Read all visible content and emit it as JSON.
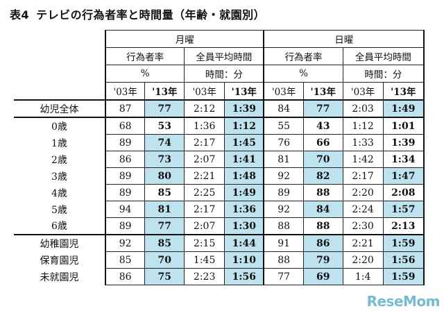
{
  "title": {
    "num": "表4",
    "text": "テレビの行為者率と時間量（年齢・就園別）"
  },
  "headers": {
    "monday": "月曜",
    "sunday": "日曜",
    "rate": "行為者率",
    "avg": "全員平均時間",
    "pct": "%",
    "time": "時間：分",
    "y03": "'03年",
    "y13": "'13年"
  },
  "rows": [
    {
      "label": "幼児全体",
      "v": [
        "87",
        "77",
        "2:12",
        "1:39",
        "84",
        "77",
        "2:03",
        "1:49"
      ]
    },
    {
      "label": "0歳",
      "v": [
        "68",
        "53",
        "1:36",
        "1:12",
        "55",
        "43",
        "1:12",
        "1:01"
      ]
    },
    {
      "label": "1歳",
      "v": [
        "89",
        "74",
        "2:17",
        "1:45",
        "76",
        "66",
        "1:33",
        "1:39"
      ]
    },
    {
      "label": "2歳",
      "v": [
        "86",
        "73",
        "2:07",
        "1:41",
        "81",
        "70",
        "1:42",
        "1:34"
      ]
    },
    {
      "label": "3歳",
      "v": [
        "89",
        "80",
        "2:21",
        "1:48",
        "92",
        "82",
        "2:17",
        "1:47"
      ]
    },
    {
      "label": "4歳",
      "v": [
        "89",
        "85",
        "2:25",
        "1:49",
        "89",
        "88",
        "2:20",
        "2:08"
      ]
    },
    {
      "label": "5歳",
      "v": [
        "94",
        "81",
        "2:17",
        "1:36",
        "92",
        "84",
        "2:24",
        "1:57"
      ]
    },
    {
      "label": "6歳",
      "v": [
        "89",
        "77",
        "2:07",
        "1:30",
        "88",
        "88",
        "2:30",
        "2:13"
      ]
    },
    {
      "label": "幼稚園児",
      "v": [
        "92",
        "85",
        "2:15",
        "1:44",
        "91",
        "86",
        "2:21",
        "1:59"
      ]
    },
    {
      "label": "保育園児",
      "v": [
        "85",
        "70",
        "1:45",
        "1:10",
        "88",
        "79",
        "2:20",
        "1:56"
      ]
    },
    {
      "label": "未就園児",
      "v": [
        "86",
        "75",
        "2:23",
        "1:56",
        "77",
        "69",
        "1:4",
        "1:59"
      ]
    }
  ],
  "highlight": [
    [
      false,
      true,
      false,
      true,
      false,
      true,
      false,
      true
    ],
    [
      false,
      false,
      false,
      true,
      false,
      false,
      false,
      false
    ],
    [
      false,
      true,
      false,
      true,
      false,
      false,
      false,
      false
    ],
    [
      false,
      true,
      false,
      true,
      false,
      true,
      false,
      false
    ],
    [
      false,
      true,
      false,
      true,
      false,
      true,
      false,
      true
    ],
    [
      false,
      false,
      false,
      true,
      false,
      false,
      false,
      false
    ],
    [
      false,
      true,
      false,
      true,
      false,
      true,
      false,
      true
    ],
    [
      false,
      true,
      false,
      true,
      false,
      false,
      false,
      false
    ],
    [
      false,
      true,
      false,
      true,
      false,
      true,
      false,
      true
    ],
    [
      false,
      true,
      false,
      true,
      false,
      true,
      false,
      true
    ],
    [
      false,
      true,
      false,
      true,
      false,
      true,
      false,
      true
    ]
  ],
  "watermark": {
    "a": "Rese",
    "b": "Mom"
  }
}
